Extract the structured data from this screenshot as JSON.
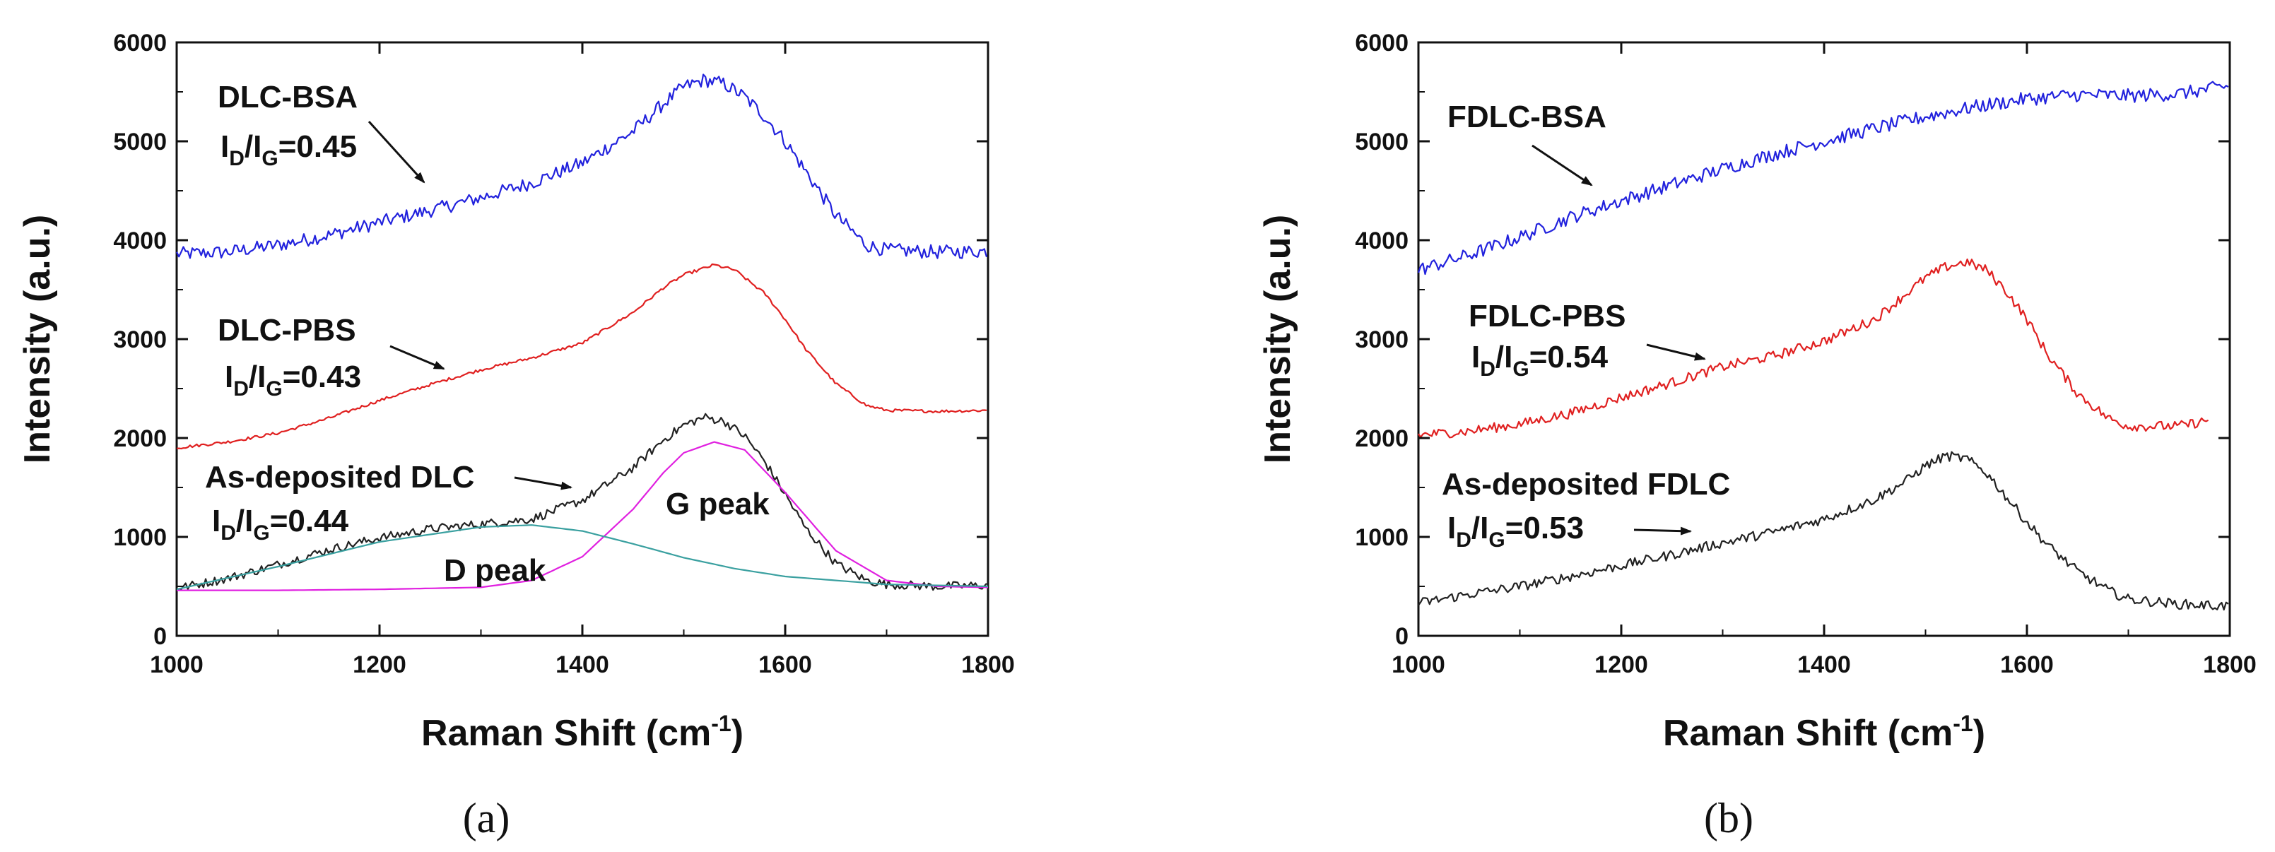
{
  "chart_data": [
    {
      "panel_label": "(a)",
      "type": "line",
      "xlabel": "Raman Shift (cm",
      "xlabel_sup": "-1",
      "xlabel_end": ")",
      "ylabel": "Intensity (a.u.)",
      "xlim": [
        1000,
        1800
      ],
      "ylim": [
        0,
        6000
      ],
      "xticks": [
        1000,
        1200,
        1400,
        1600,
        1800
      ],
      "yticks": [
        0,
        1000,
        2000,
        3000,
        4000,
        5000,
        6000
      ],
      "grid": false,
      "series": [
        {
          "name": "DLC-BSA",
          "color": "#2222dd",
          "noise": 70,
          "x": [
            1000,
            1050,
            1100,
            1150,
            1200,
            1250,
            1300,
            1350,
            1400,
            1450,
            1480,
            1500,
            1520,
            1540,
            1560,
            1580,
            1600,
            1620,
            1650,
            1680,
            1700,
            1750,
            1800
          ],
          "y": [
            3860,
            3880,
            3950,
            4050,
            4180,
            4300,
            4430,
            4580,
            4780,
            5100,
            5380,
            5550,
            5620,
            5580,
            5450,
            5250,
            5000,
            4700,
            4250,
            3950,
            3900,
            3880,
            3890
          ]
        },
        {
          "name": "DLC-PBS",
          "color": "#e02020",
          "noise": 15,
          "x": [
            1000,
            1050,
            1100,
            1150,
            1200,
            1250,
            1300,
            1350,
            1400,
            1450,
            1480,
            1500,
            1530,
            1550,
            1580,
            1600,
            1620,
            1650,
            1680,
            1700,
            1750,
            1800
          ],
          "y": [
            1900,
            1960,
            2050,
            2200,
            2380,
            2540,
            2690,
            2810,
            2960,
            3270,
            3520,
            3650,
            3750,
            3700,
            3460,
            3200,
            2900,
            2550,
            2330,
            2280,
            2270,
            2280
          ]
        },
        {
          "name": "As-deposited DLC",
          "color": "#222222",
          "noise": 45,
          "x": [
            1000,
            1050,
            1100,
            1150,
            1200,
            1250,
            1300,
            1350,
            1400,
            1450,
            1480,
            1500,
            1520,
            1540,
            1560,
            1580,
            1600,
            1620,
            1650,
            1680,
            1700,
            1750,
            1800
          ],
          "y": [
            480,
            580,
            720,
            870,
            990,
            1080,
            1130,
            1180,
            1370,
            1700,
            1980,
            2130,
            2210,
            2170,
            2020,
            1760,
            1430,
            1090,
            730,
            560,
            520,
            500,
            510
          ]
        },
        {
          "name": "G peak fit",
          "color": "#e020e0",
          "noise": 0,
          "x": [
            1000,
            1100,
            1200,
            1300,
            1350,
            1400,
            1450,
            1480,
            1500,
            1530,
            1560,
            1600,
            1650,
            1700,
            1750,
            1800
          ],
          "y": [
            460,
            460,
            470,
            490,
            560,
            800,
            1280,
            1650,
            1850,
            1960,
            1880,
            1450,
            860,
            560,
            500,
            490
          ]
        },
        {
          "name": "D peak fit",
          "color": "#3aa0a0",
          "noise": 0,
          "x": [
            1000,
            1100,
            1200,
            1300,
            1350,
            1400,
            1450,
            1500,
            1550,
            1600,
            1700,
            1800
          ],
          "y": [
            470,
            700,
            950,
            1100,
            1120,
            1060,
            930,
            790,
            680,
            600,
            520,
            500
          ]
        }
      ],
      "annotations": {
        "bsa_name": "DLC-BSA",
        "bsa_ratio_I": "I",
        "bsa_ratio_D": "D",
        "bsa_ratio_slash": "/I",
        "bsa_ratio_G": "G",
        "bsa_ratio_value": "=0.45",
        "pbs_name": "DLC-PBS",
        "pbs_ratio_I": "I",
        "pbs_ratio_D": "D",
        "pbs_ratio_slash": "/I",
        "pbs_ratio_G": "G",
        "pbs_ratio_value": "=0.43",
        "dep_name": "As-deposited DLC",
        "dep_ratio_I": "I",
        "dep_ratio_D": "D",
        "dep_ratio_slash": "/I",
        "dep_ratio_G": "G",
        "dep_ratio_value": "=0.44",
        "g_peak": "G peak",
        "d_peak": "D peak"
      }
    },
    {
      "panel_label": "(b)",
      "type": "line",
      "xlabel": "Raman Shift (cm",
      "xlabel_sup": "-1",
      "xlabel_end": ")",
      "ylabel": "Intensity (a.u.)",
      "xlim": [
        1000,
        1800
      ],
      "ylim": [
        0,
        6000
      ],
      "xticks": [
        1000,
        1200,
        1400,
        1600,
        1800
      ],
      "yticks": [
        0,
        1000,
        2000,
        3000,
        4000,
        5000,
        6000
      ],
      "grid": false,
      "series": [
        {
          "name": "FDLC-BSA",
          "color": "#2222dd",
          "noise": 70,
          "x": [
            1000,
            1050,
            1100,
            1150,
            1200,
            1250,
            1300,
            1350,
            1400,
            1450,
            1500,
            1550,
            1600,
            1650,
            1700,
            1750,
            1800
          ],
          "y": [
            3700,
            3850,
            4030,
            4230,
            4400,
            4560,
            4720,
            4870,
            5000,
            5130,
            5250,
            5350,
            5430,
            5470,
            5460,
            5480,
            5560
          ]
        },
        {
          "name": "FDLC-PBS",
          "color": "#e02020",
          "noise": 50,
          "x": [
            1000,
            1050,
            1100,
            1150,
            1200,
            1250,
            1300,
            1350,
            1400,
            1450,
            1480,
            1500,
            1520,
            1540,
            1560,
            1580,
            1600,
            1620,
            1650,
            1680,
            1700,
            1750,
            1780
          ],
          "y": [
            2030,
            2070,
            2140,
            2250,
            2410,
            2560,
            2720,
            2830,
            2980,
            3200,
            3450,
            3620,
            3730,
            3780,
            3700,
            3480,
            3200,
            2850,
            2450,
            2200,
            2120,
            2120,
            2180
          ]
        },
        {
          "name": "As-deposited FDLC",
          "color": "#222222",
          "noise": 50,
          "x": [
            1000,
            1050,
            1100,
            1150,
            1200,
            1250,
            1300,
            1350,
            1400,
            1450,
            1480,
            1500,
            1520,
            1540,
            1560,
            1580,
            1600,
            1620,
            1650,
            1680,
            1700,
            1750,
            1800
          ],
          "y": [
            330,
            420,
            500,
            600,
            710,
            820,
            940,
            1050,
            1180,
            1380,
            1560,
            1720,
            1820,
            1790,
            1650,
            1400,
            1150,
            920,
            650,
            460,
            370,
            320,
            300
          ]
        }
      ],
      "annotations": {
        "bsa_name": "FDLC-BSA",
        "pbs_name": "FDLC-PBS",
        "pbs_ratio_I": "I",
        "pbs_ratio_D": "D",
        "pbs_ratio_slash": "/I",
        "pbs_ratio_G": "G",
        "pbs_ratio_value": "=0.54",
        "dep_name": "As-deposited FDLC",
        "dep_ratio_I": "I",
        "dep_ratio_D": "D",
        "dep_ratio_slash": "/I",
        "dep_ratio_G": "G",
        "dep_ratio_value": "=0.53"
      }
    }
  ]
}
